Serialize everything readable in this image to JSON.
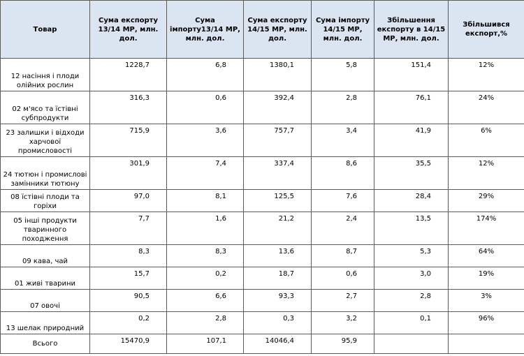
{
  "table": {
    "headers": [
      "Товар",
      "Сума  експорту 13/14 МР, млн. дол.",
      "Сума імпорту13/14 МР, млн. дол.",
      "Сума експорту 14/15 МР, млн. дол.",
      "Сума імпорту 14/15 МР, млн. дол.",
      "Збільшення експорту в 14/15 МР, млн. дол.",
      "Збільшився експорт,%"
    ],
    "rows": [
      [
        "12 насіння і плоди олійних рослин",
        "1228,7",
        "6,8",
        "1380,1",
        "5,8",
        "151,4",
        "12%"
      ],
      [
        "02 м'ясо та їстівні субпродукти",
        "316,3",
        "0,6",
        "392,4",
        "2,8",
        "76,1",
        "24%"
      ],
      [
        "23 залишки і відходи харчової промисловості",
        "715,9",
        "3,6",
        "757,7",
        "3,4",
        "41,9",
        "6%"
      ],
      [
        "24 тютюн і промислові замінники тютюну",
        "301,9",
        "7,4",
        "337,4",
        "8,6",
        "35,5",
        "12%"
      ],
      [
        "08 їстівні плоди та горіхи",
        "97,0",
        "8,1",
        "125,5",
        "7,6",
        "28,4",
        "29%"
      ],
      [
        "05 інші продукти тваринного походження",
        "7,7",
        "1,6",
        "21,2",
        "2,4",
        "13,5",
        "174%"
      ],
      [
        "09 кава, чай",
        "8,3",
        "8,3",
        "13,6",
        "8,7",
        "5,3",
        "64%"
      ],
      [
        "01 живі тварини",
        "15,7",
        "0,2",
        "18,7",
        "0,6",
        "3,0",
        "19%"
      ],
      [
        "07 овочі",
        "90,5",
        "6,6",
        "93,3",
        "2,7",
        "2,8",
        "3%"
      ],
      [
        "13 шелак природний",
        "0,2",
        "2,8",
        "0,3",
        "3,2",
        "0,1",
        "96%"
      ],
      [
        "Всього",
        "15470,9",
        "107,1",
        "14046,4",
        "95,9",
        "",
        ""
      ]
    ]
  }
}
